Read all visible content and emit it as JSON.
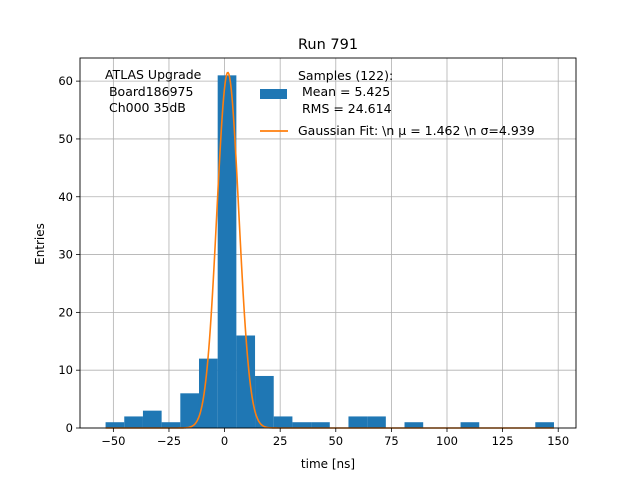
{
  "chart_data": {
    "type": "bar",
    "title": "Run 791",
    "xlabel": "time [ns]",
    "ylabel": "Entries",
    "xlim": [
      -65,
      158
    ],
    "ylim": [
      0,
      64
    ],
    "grid": true,
    "x_ticks": [
      -50,
      -25,
      0,
      25,
      50,
      75,
      100,
      125,
      150
    ],
    "x_tick_labels": [
      "−50",
      "−25",
      "0",
      "25",
      "50",
      "75",
      "100",
      "125",
      "150"
    ],
    "y_ticks": [
      0,
      10,
      20,
      30,
      40,
      50,
      60
    ],
    "y_tick_labels": [
      "0",
      "10",
      "20",
      "30",
      "40",
      "50",
      "60"
    ],
    "bins": [
      {
        "x0": -53.5,
        "x1": -45.1,
        "count": 1
      },
      {
        "x0": -45.1,
        "x1": -36.7,
        "count": 2
      },
      {
        "x0": -36.7,
        "x1": -28.3,
        "count": 3
      },
      {
        "x0": -28.3,
        "x1": -19.9,
        "count": 1
      },
      {
        "x0": -19.9,
        "x1": -11.5,
        "count": 6
      },
      {
        "x0": -11.5,
        "x1": -3.1,
        "count": 12
      },
      {
        "x0": -3.1,
        "x1": 5.3,
        "count": 61
      },
      {
        "x0": 5.3,
        "x1": 13.7,
        "count": 16
      },
      {
        "x0": 13.7,
        "x1": 22.1,
        "count": 9
      },
      {
        "x0": 22.1,
        "x1": 30.5,
        "count": 2
      },
      {
        "x0": 30.5,
        "x1": 38.9,
        "count": 1
      },
      {
        "x0": 38.9,
        "x1": 47.3,
        "count": 1
      },
      {
        "x0": 55.7,
        "x1": 64.1,
        "count": 2
      },
      {
        "x0": 64.1,
        "x1": 72.5,
        "count": 2
      },
      {
        "x0": 80.9,
        "x1": 89.3,
        "count": 1
      },
      {
        "x0": 106.1,
        "x1": 114.5,
        "count": 1
      },
      {
        "x0": 139.7,
        "x1": 148.1,
        "count": 1
      }
    ],
    "fit": {
      "mu": 1.462,
      "sigma": 4.939,
      "amplitude": 61.5
    },
    "legend": {
      "placement": "top-right",
      "samples_lines": [
        "Samples (122):",
        " Mean = 5.425",
        " RMS = 24.614"
      ],
      "fit_label": "Gaussian Fit: \\n μ = 1.462 \\n σ=4.939"
    },
    "annotation_lines": [
      "ATLAS Upgrade",
      " Board186975",
      " Ch000 35dB"
    ],
    "colors": {
      "bars": "#1f77b4",
      "fit": "#ff7f0e",
      "grid": "#b0b0b0"
    }
  }
}
